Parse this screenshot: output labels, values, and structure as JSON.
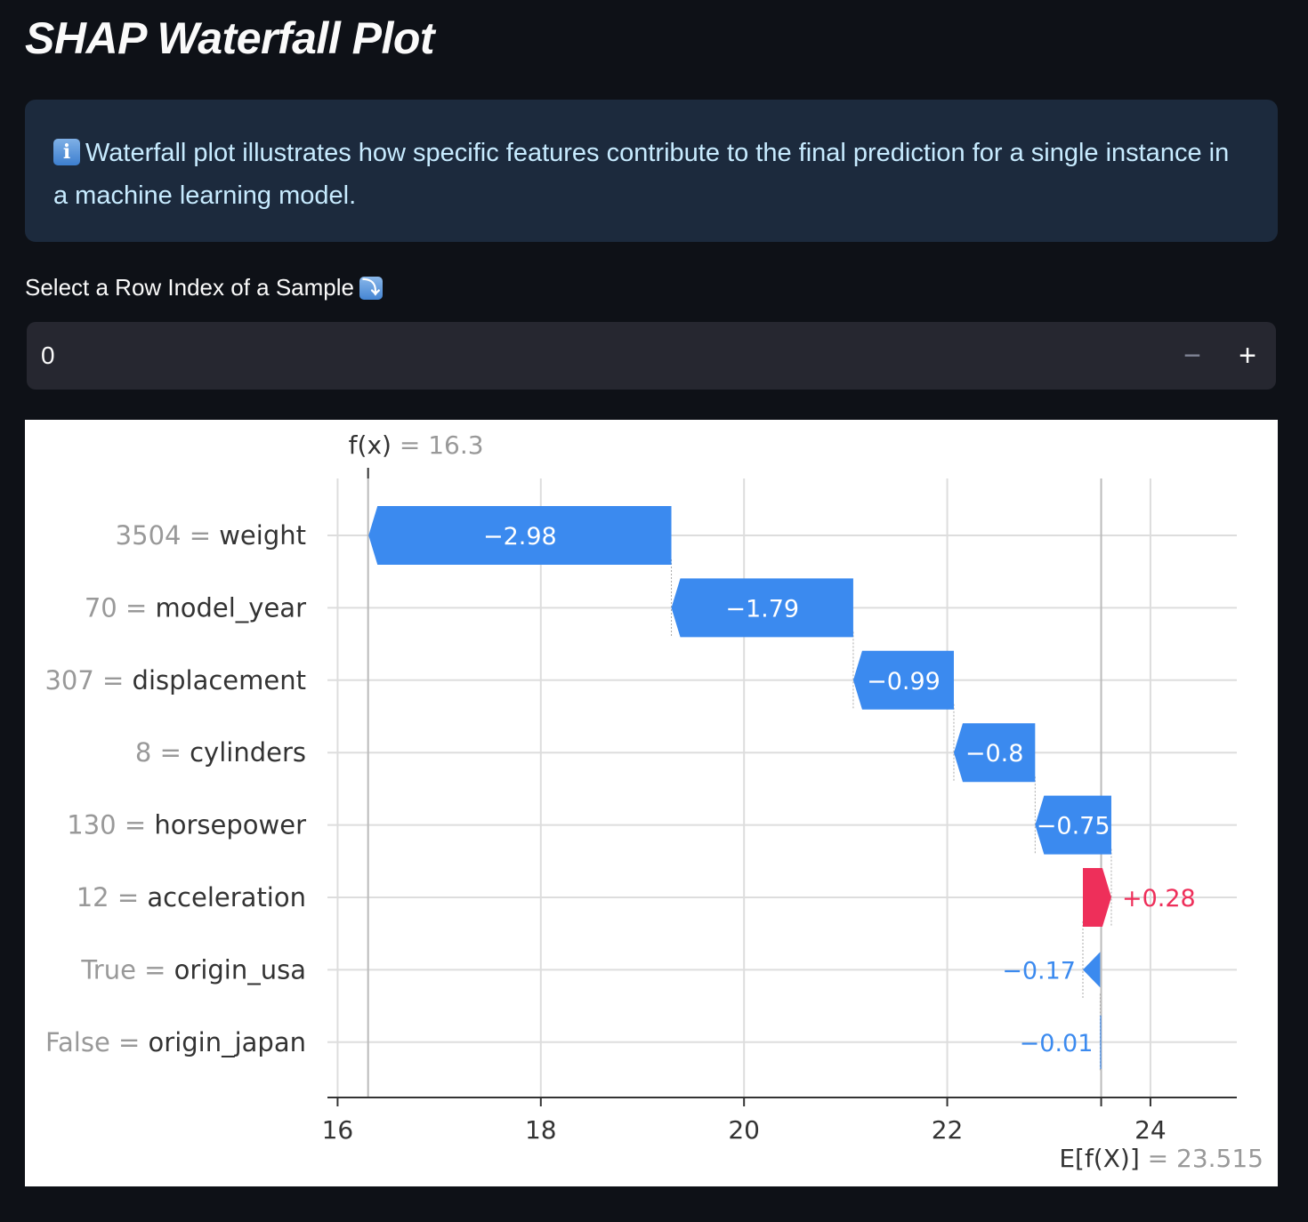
{
  "page": {
    "title": "SHAP Waterfall Plot",
    "info_text": "Waterfall plot illustrates how specific features contribute to the final prediction for a single instance in a machine learning model.",
    "info_icon": "information-icon",
    "input_label": "Select a Row Index of a Sample",
    "input_label_icon": "arrow-down-right-icon",
    "input_value": "0",
    "minus_label": "−",
    "plus_label": "+"
  },
  "chart_data": {
    "type": "waterfall",
    "base_value": 23.515,
    "fx_value": 16.3,
    "fx_label_name": "f(x)",
    "fx_label_value": "16.3",
    "base_label_name": "E[f(X)]",
    "base_label_value": "23.515",
    "xlim": [
      15.9,
      24.85
    ],
    "xticks": [
      16,
      18,
      20,
      22,
      24
    ],
    "grid": true,
    "colors": {
      "negative": "#3b8aef",
      "positive": "#ee2f5a",
      "feature_value": "#999999",
      "feature_name": "#333333"
    },
    "features": [
      {
        "value": "3504",
        "name": "weight",
        "shap": -2.98,
        "label": "−2.98"
      },
      {
        "value": "70",
        "name": "model_year",
        "shap": -1.79,
        "label": "−1.79"
      },
      {
        "value": "307",
        "name": "displacement",
        "shap": -0.99,
        "label": "−0.99"
      },
      {
        "value": "8",
        "name": "cylinders",
        "shap": -0.8,
        "label": "−0.8"
      },
      {
        "value": "130",
        "name": "horsepower",
        "shap": -0.75,
        "label": "−0.75"
      },
      {
        "value": "12",
        "name": "acceleration",
        "shap": 0.28,
        "label": "+0.28"
      },
      {
        "value": "True",
        "name": "origin_usa",
        "shap": -0.17,
        "label": "−0.17"
      },
      {
        "value": "False",
        "name": "origin_japan",
        "shap": -0.01,
        "label": "−0.01"
      }
    ]
  }
}
